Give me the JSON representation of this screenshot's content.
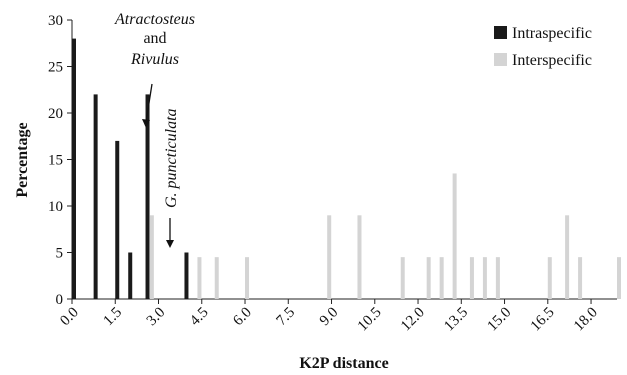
{
  "chart_data": {
    "type": "bar",
    "xlabel": "K2P distance",
    "ylabel": "Percentage",
    "ylim": [
      0,
      30
    ],
    "y_ticks": [
      0,
      5,
      10,
      15,
      20,
      25,
      30
    ],
    "x_range": [
      0,
      18.9
    ],
    "x_tick_labels": [
      "0.0",
      "1.5",
      "3.0",
      "4.5",
      "6.0",
      "7.5",
      "9.0",
      "10.5",
      "12.0",
      "13.5",
      "15.0",
      "16.5",
      "18.0"
    ],
    "x_tick_values": [
      0,
      1.5,
      3.0,
      4.5,
      6.0,
      7.5,
      9.0,
      10.5,
      12.0,
      13.5,
      15.0,
      16.5,
      18.0
    ],
    "grid": false,
    "legend_placement": "top-right",
    "series": [
      {
        "name": "Intraspecific",
        "color": "#1a1a1a",
        "x": [
          0.0,
          0.75,
          1.5,
          1.95,
          2.55,
          3.9
        ],
        "values": [
          28,
          22,
          17,
          5,
          22,
          5
        ]
      },
      {
        "name": "Interspecific",
        "color": "#d4d4d4",
        "x": [
          2.7,
          4.35,
          4.95,
          6.0,
          8.85,
          9.9,
          11.4,
          12.3,
          12.75,
          13.2,
          13.8,
          14.25,
          14.7,
          16.5,
          17.1,
          17.55,
          18.9
        ],
        "values": [
          9,
          4.5,
          4.5,
          4.5,
          9,
          9,
          4.5,
          4.5,
          4.5,
          13.5,
          4.5,
          4.5,
          4.5,
          4.5,
          9,
          4.5,
          4.5
        ]
      }
    ],
    "annotations": [
      {
        "id": "atractosteus",
        "lines": [
          "Atractosteus",
          "and",
          "Rivulus"
        ],
        "italic": [
          true,
          false,
          true
        ],
        "x": 2.55,
        "y": 22
      },
      {
        "id": "gpunctulata",
        "text": "G. puncticulata",
        "italic": true,
        "rotated": true,
        "x": 3.9,
        "y": 5
      }
    ]
  }
}
